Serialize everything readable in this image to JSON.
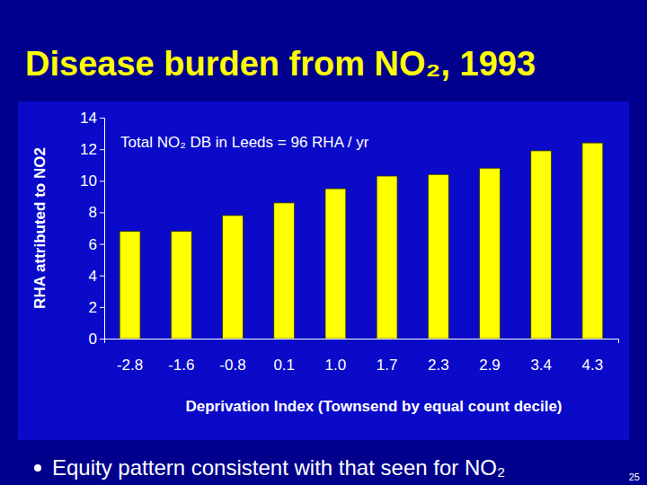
{
  "chart_data": {
    "type": "bar",
    "title": "Disease burden from NO₂, 1993",
    "annotations": [
      "Total NO₂ DB in Leeds = 96 RHA / yr"
    ],
    "notes": [
      "Equity pattern consistent with that seen for NO₂"
    ],
    "page_number": "25",
    "x_label": "Deprivation Index (Townsend by equal count decile)",
    "y_label": "RHA attributed to NO2",
    "categories": [
      "-2.8",
      "-1.6",
      "-0.8",
      "0.1",
      "1.0",
      "1.7",
      "2.3",
      "2.9",
      "3.4",
      "4.3"
    ],
    "values": [
      6.8,
      6.8,
      7.8,
      8.6,
      9.5,
      10.3,
      10.4,
      10.8,
      11.9,
      12.4
    ],
    "color": "#ffff00",
    "ylim": [
      0,
      14
    ],
    "yticks": [
      0,
      2,
      4,
      6,
      8,
      10,
      12,
      14
    ],
    "grid": false
  }
}
